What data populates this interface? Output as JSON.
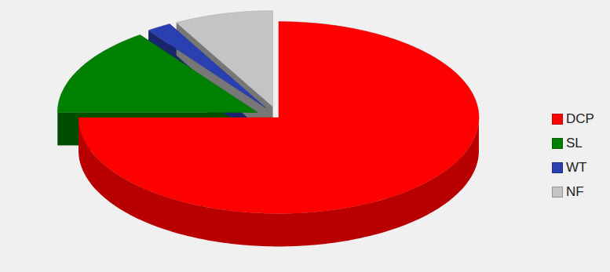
{
  "chart_data": {
    "type": "pie",
    "categories": [
      "DCP",
      "SL",
      "WT",
      "NF"
    ],
    "values": [
      75,
      15,
      2,
      8
    ],
    "colors": [
      "#ff0000",
      "#008000",
      "#2a3fb0",
      "#c4c4c4"
    ],
    "legend": "right"
  }
}
